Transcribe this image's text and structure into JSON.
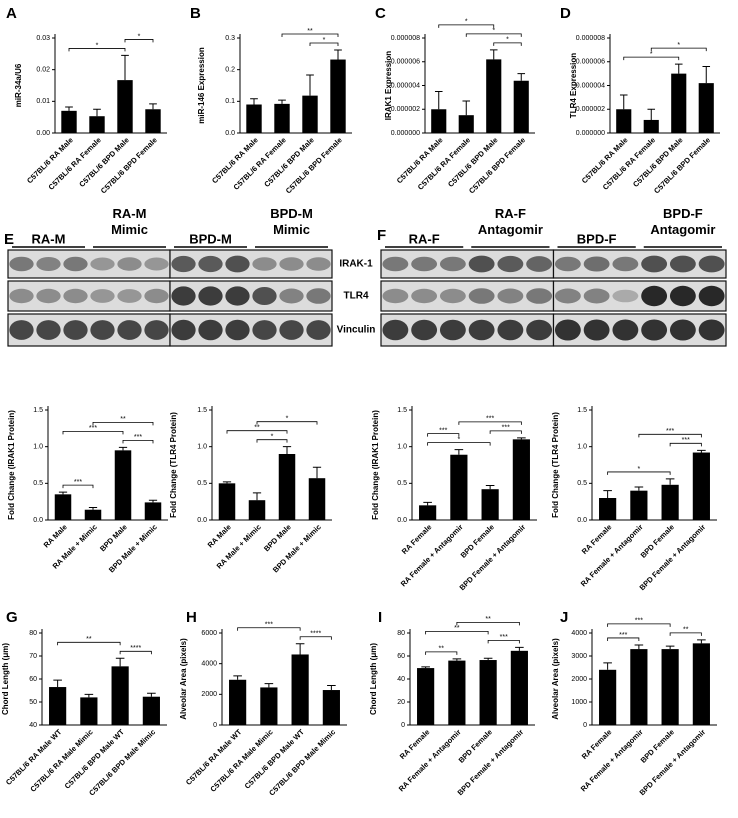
{
  "chart_data": [
    {
      "type": "bar",
      "panel": "A",
      "ylabel": "miR-34a/U6",
      "categories": [
        "C57BL/6 RA Male",
        "C57BL/6 RA Female",
        "C57BL/6 BPD Male",
        "C57BL/6 BPD Female"
      ],
      "values": [
        0.007,
        0.0053,
        0.0167,
        0.0075
      ],
      "errors": [
        0.0012,
        0.0022,
        0.0078,
        0.0017
      ],
      "color": "#000000",
      "ylim": [
        0,
        0.03
      ],
      "yticks": [
        {
          "value": 0,
          "label": "0.00"
        },
        0.01,
        0.02,
        0.03
      ],
      "significance": [
        {
          "from": 0,
          "to": 2,
          "label": "*"
        },
        {
          "from": 2,
          "to": 3,
          "label": "*"
        }
      ]
    },
    {
      "type": "bar",
      "panel": "B",
      "ylabel": "miR-146 Expression",
      "categories": [
        "C57BL/6 RA Male",
        "C57BL/6 RA Female",
        "C57BL/6 BPD Male",
        "C57BL/6 BPD Female"
      ],
      "values": [
        0.09,
        0.092,
        0.118,
        0.232
      ],
      "errors": [
        0.018,
        0.012,
        0.065,
        0.03
      ],
      "color": "#000000",
      "ylim": [
        0,
        0.3
      ],
      "yticks": [
        {
          "value": 0,
          "label": "0.0"
        },
        0.1,
        0.2,
        0.3
      ],
      "significance": [
        {
          "from": 2,
          "to": 3,
          "label": "*"
        },
        {
          "from": 1,
          "to": 3,
          "label": "**"
        }
      ]
    },
    {
      "type": "bar",
      "panel": "C",
      "ylabel": "IRAK1 Expression",
      "categories": [
        "C57BL/6 RA Male",
        "C57BL/6 RA Female",
        "C57BL/6 BPD Male",
        "C57BL/6 BPD Female"
      ],
      "values": [
        2e-06,
        1.5e-06,
        6.2e-06,
        4.4e-06
      ],
      "errors": [
        1.5e-06,
        1.2e-06,
        8e-07,
        6e-07
      ],
      "color": "#000000",
      "ylim": [
        0,
        8e-06
      ],
      "yticks": [
        {
          "value": 0,
          "label": "0.000000"
        },
        2e-06,
        4e-06,
        6e-06,
        8e-06
      ],
      "significance": [
        {
          "from": 2,
          "to": 3,
          "label": "*"
        },
        {
          "from": 1,
          "to": 3,
          "label": "*"
        },
        {
          "from": 0,
          "to": 2,
          "label": "*"
        }
      ]
    },
    {
      "type": "bar",
      "panel": "D",
      "ylabel": "TLR4 Expression",
      "categories": [
        "C57BL/6 RA Male",
        "C57BL/6 RA Female",
        "C57BL/6 BPD Male",
        "C57BL/6 BPD Female"
      ],
      "values": [
        2e-06,
        1.1e-06,
        5e-06,
        4.2e-06
      ],
      "errors": [
        1.2e-06,
        9e-07,
        8e-07,
        1.4e-06
      ],
      "color": "#000000",
      "ylim": [
        0,
        8e-06
      ],
      "yticks": [
        {
          "value": 0,
          "label": "0.000000"
        },
        2e-06,
        4e-06,
        6e-06,
        8e-06
      ],
      "significance": [
        {
          "from": 0,
          "to": 2,
          "label": "*"
        },
        {
          "from": 1,
          "to": 3,
          "label": "*"
        }
      ]
    },
    {
      "type": "bar",
      "ylabel": "Fold Change (IRAK1 Protein)",
      "categories": [
        "RA Male",
        "RA Male + Mimic",
        "BPD Male",
        "BPD Male + Mimic"
      ],
      "values": [
        0.35,
        0.14,
        0.95,
        0.24
      ],
      "errors": [
        0.03,
        0.03,
        0.04,
        0.03
      ],
      "color": "#000000",
      "ylim": [
        0,
        1.5
      ],
      "yticks": [
        {
          "value": 0,
          "label": "0.0"
        },
        0.5,
        {
          "value": 1,
          "label": "1.0"
        },
        1.5
      ],
      "significance": [
        {
          "from": 0,
          "to": 1,
          "label": "***"
        },
        {
          "from": 2,
          "to": 3,
          "label": "***"
        },
        {
          "from": 0,
          "to": 2,
          "label": "***"
        },
        {
          "from": 1,
          "to": 3,
          "label": "**"
        }
      ]
    },
    {
      "type": "bar",
      "ylabel": "Fold Change (TLR4 Protein)",
      "categories": [
        "RA Male",
        "RA Male + Mimic",
        "BPD Male",
        "BPD Male + Mimic"
      ],
      "values": [
        0.5,
        0.27,
        0.9,
        0.57
      ],
      "errors": [
        0.02,
        0.1,
        0.1,
        0.15
      ],
      "color": "#000000",
      "ylim": [
        0,
        1.5
      ],
      "yticks": [
        {
          "value": 0,
          "label": "0.0"
        },
        0.5,
        {
          "value": 1,
          "label": "1.0"
        },
        1.5
      ],
      "significance": [
        {
          "from": 1,
          "to": 2,
          "label": "*"
        },
        {
          "from": 0,
          "to": 2,
          "label": "**"
        },
        {
          "from": 1,
          "to": 3,
          "label": "*"
        }
      ]
    },
    {
      "type": "bar",
      "ylabel": "Fold Change (IRAK1 Protein)",
      "categories": [
        "RA Female",
        "RA Female + Antagomir",
        "BPD Female",
        "BPD Female + Antagomir"
      ],
      "values": [
        0.2,
        0.89,
        0.42,
        1.1
      ],
      "errors": [
        0.04,
        0.07,
        0.05,
        0.02
      ],
      "color": "#000000",
      "ylim": [
        0,
        1.5
      ],
      "yticks": [
        {
          "value": 0,
          "label": "0.0"
        },
        0.5,
        {
          "value": 1,
          "label": "1.0"
        },
        1.5
      ],
      "significance": [
        {
          "from": 0,
          "to": 2,
          "label": "*"
        },
        {
          "from": 2,
          "to": 3,
          "label": "***"
        },
        {
          "from": 0,
          "to": 1,
          "label": "***"
        },
        {
          "from": 1,
          "to": 3,
          "label": "***"
        }
      ]
    },
    {
      "type": "bar",
      "ylabel": "Fold Change (TLR4 Protein)",
      "categories": [
        "RA Female",
        "RA Female + Antagomir",
        "BPD Female",
        "BPD Female + Antagomir"
      ],
      "values": [
        0.3,
        0.4,
        0.48,
        0.92
      ],
      "errors": [
        0.1,
        0.05,
        0.08,
        0.03
      ],
      "color": "#000000",
      "ylim": [
        0,
        1.5
      ],
      "yticks": [
        {
          "value": 0,
          "label": "0.0"
        },
        0.5,
        {
          "value": 1,
          "label": "1.0"
        },
        1.5
      ],
      "significance": [
        {
          "from": 0,
          "to": 2,
          "label": "*"
        },
        {
          "from": 2,
          "to": 3,
          "label": "***"
        },
        {
          "from": 1,
          "to": 3,
          "label": "***"
        }
      ]
    },
    {
      "type": "bar",
      "panel": "G",
      "ylabel": "Chord Length (μm)",
      "categories": [
        "C57BL/6 RA Male WT",
        "C57BL/6 RA Male Mimic",
        "C57BL/6 BPD Male WT",
        "C57BL/6 BPD Male Mimic"
      ],
      "values": [
        56.5,
        52,
        65.5,
        52.3
      ],
      "errors": [
        3,
        1.3,
        3.5,
        1.5
      ],
      "color": "#000000",
      "ylim": [
        40,
        80
      ],
      "yticks": [
        40,
        50,
        60,
        70,
        80
      ],
      "significance": [
        {
          "from": 2,
          "to": 3,
          "label": "****"
        },
        {
          "from": 0,
          "to": 2,
          "label": "**"
        }
      ]
    },
    {
      "type": "bar",
      "panel": "H",
      "ylabel": "Alveolar Area (pixels)",
      "categories": [
        "C57BL/6 RA Male WT",
        "C57BL/6 RA Male Mimic",
        "C57BL/6 BPD Male WT",
        "C57BL/6 BPD Male Mimic"
      ],
      "values": [
        2950,
        2450,
        4600,
        2280
      ],
      "errors": [
        250,
        250,
        700,
        300
      ],
      "color": "#000000",
      "ylim": [
        0,
        6000
      ],
      "yticks": [
        0,
        2000,
        4000,
        6000
      ],
      "significance": [
        {
          "from": 2,
          "to": 3,
          "label": "****"
        },
        {
          "from": 0,
          "to": 2,
          "label": "***"
        }
      ]
    },
    {
      "type": "bar",
      "panel": "I",
      "ylabel": "Chord Length (μm)",
      "categories": [
        "RA Female",
        "RA Female + Antagomir",
        "BPD Female",
        "BPD Female + Antagomir"
      ],
      "values": [
        49.5,
        56,
        56.5,
        64.5
      ],
      "errors": [
        1,
        1.5,
        1.5,
        3
      ],
      "color": "#000000",
      "ylim": [
        0,
        80
      ],
      "yticks": [
        0,
        20,
        40,
        60,
        80
      ],
      "significance": [
        {
          "from": 0,
          "to": 1,
          "label": "**"
        },
        {
          "from": 2,
          "to": 3,
          "label": "***"
        },
        {
          "from": 0,
          "to": 2,
          "label": "**"
        },
        {
          "from": 1,
          "to": 3,
          "label": "**"
        }
      ]
    },
    {
      "type": "bar",
      "panel": "J",
      "ylabel": "Alveolar Area (pixels)",
      "categories": [
        "RA Female",
        "RA Female + Antagomir",
        "BPD Female",
        "BPD Female + Antagomir"
      ],
      "values": [
        2400,
        3300,
        3300,
        3550
      ],
      "errors": [
        300,
        180,
        130,
        150
      ],
      "color": "#000000",
      "ylim": [
        0,
        4000
      ],
      "yticks": [
        0,
        1000,
        2000,
        3000,
        4000
      ],
      "significance": [
        {
          "from": 0,
          "to": 1,
          "label": "***"
        },
        {
          "from": 2,
          "to": 3,
          "label": "**"
        },
        {
          "from": 0,
          "to": 2,
          "label": "***"
        }
      ]
    }
  ],
  "blots": [
    {
      "panel": "E",
      "groups": [
        "RA-M",
        "RA-M Mimic",
        "BPD-M",
        "BPD-M Mimic"
      ]
    },
    {
      "panel": "F",
      "groups": [
        "RA-F",
        "RA-F Antagomir",
        "BPD-F",
        "BPD-F Antagomir"
      ]
    }
  ],
  "blot_rows": [
    "IRAK-1",
    "TLR4",
    "Vinculin"
  ]
}
